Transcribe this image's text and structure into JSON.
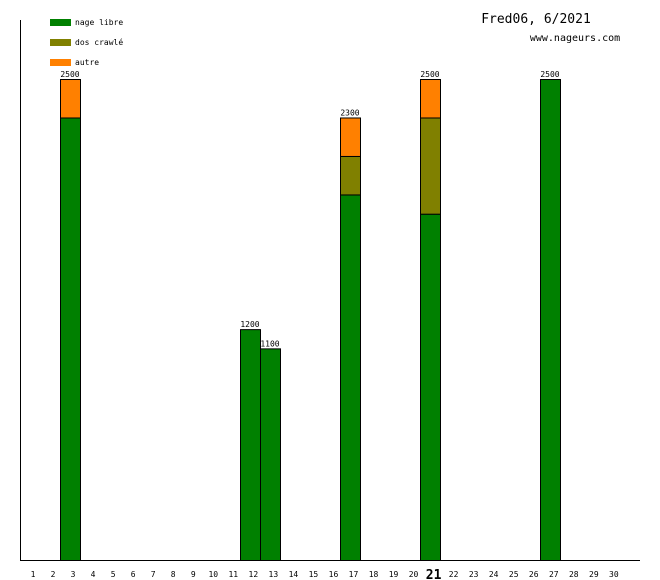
{
  "chart_data": {
    "type": "bar",
    "stacked": true,
    "title": "Fred06, 6/2021",
    "subtitle": "www.nageurs.com",
    "xlabel": "",
    "ylabel": "",
    "ylim": [
      0,
      2500
    ],
    "grid": false,
    "legend_position": "top-left",
    "highlight_category": "21",
    "categories": [
      "1",
      "2",
      "3",
      "4",
      "5",
      "6",
      "7",
      "8",
      "9",
      "10",
      "11",
      "12",
      "13",
      "14",
      "15",
      "16",
      "17",
      "18",
      "19",
      "20",
      "21",
      "22",
      "23",
      "24",
      "25",
      "26",
      "27",
      "28",
      "29",
      "30"
    ],
    "series": [
      {
        "name": "nage libre",
        "color": "#008000",
        "values": [
          0,
          0,
          2300,
          0,
          0,
          0,
          0,
          0,
          0,
          0,
          0,
          1200,
          1100,
          0,
          0,
          0,
          1900,
          0,
          0,
          0,
          1800,
          0,
          0,
          0,
          0,
          0,
          2500,
          0,
          0,
          0
        ]
      },
      {
        "name": "dos crawlé",
        "color": "#808000",
        "values": [
          0,
          0,
          0,
          0,
          0,
          0,
          0,
          0,
          0,
          0,
          0,
          0,
          0,
          0,
          0,
          0,
          200,
          0,
          0,
          0,
          500,
          0,
          0,
          0,
          0,
          0,
          0,
          0,
          0,
          0
        ]
      },
      {
        "name": "autre",
        "color": "#ff8000",
        "values": [
          0,
          0,
          200,
          0,
          0,
          0,
          0,
          0,
          0,
          0,
          0,
          0,
          0,
          0,
          0,
          0,
          200,
          0,
          0,
          0,
          200,
          0,
          0,
          0,
          0,
          0,
          0,
          0,
          0,
          0
        ]
      }
    ],
    "totals": [
      null,
      null,
      "2500",
      null,
      null,
      null,
      null,
      null,
      null,
      null,
      null,
      "1200",
      "1100",
      null,
      null,
      null,
      "2300",
      null,
      null,
      null,
      "2500",
      null,
      null,
      null,
      null,
      null,
      "2500",
      null,
      null,
      null
    ]
  }
}
